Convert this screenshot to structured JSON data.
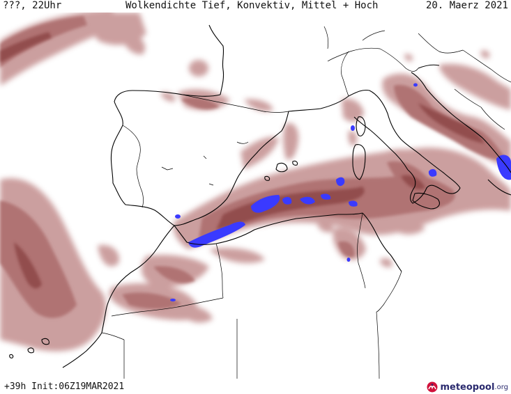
{
  "header": {
    "left": "???, 22Uhr",
    "center": "Wolkendichte  Tief, Konvektiv, Mittel + Hoch",
    "right": "20. Maerz 2021"
  },
  "footer": {
    "run_info": "+39h Init:06Z19MAR2021",
    "brand_name": "meteopool",
    "brand_tld": ".org",
    "logo_icon": "meteopool-logo-icon"
  },
  "colors": {
    "cloud_light": "#c99a9a",
    "cloud_mid": "#b07373",
    "cloud_dark": "#8f4a4a",
    "cloud_highlight": "#3a3aff",
    "coast_line": "#000000",
    "background": "#ffffff"
  }
}
